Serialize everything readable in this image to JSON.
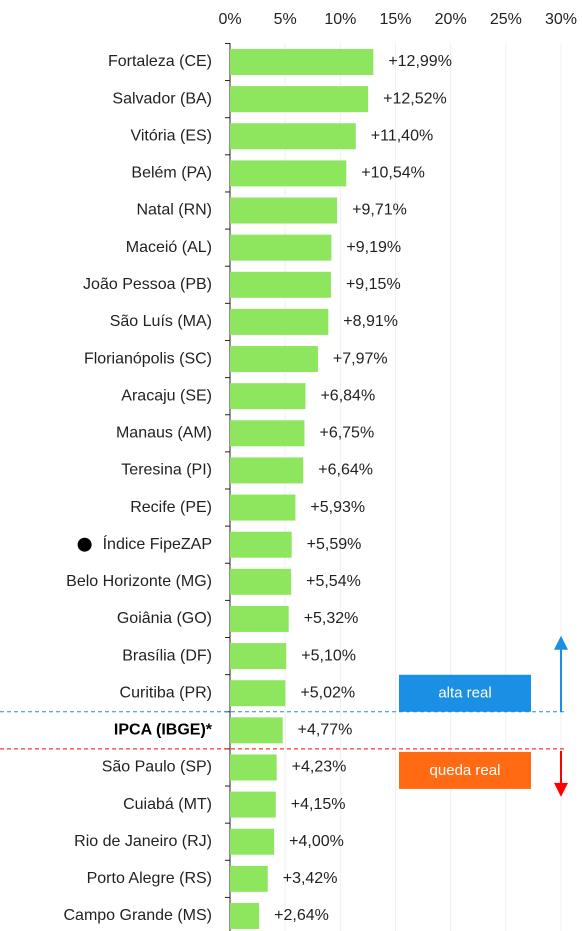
{
  "chart_data": {
    "type": "hbar",
    "categories": [
      "Fortaleza (CE)",
      "Salvador (BA)",
      "Vitória (ES)",
      "Belém (PA)",
      "Natal (RN)",
      "Maceió (AL)",
      "João Pessoa (PB)",
      "São Luís (MA)",
      "Florianópolis (SC)",
      "Aracaju (SE)",
      "Manaus (AM)",
      "Teresina (PI)",
      "Recife (PE)",
      "Índice FipeZAP",
      "Belo Horizonte (MG)",
      "Goiânia (GO)",
      "Brasília (DF)",
      "Curitiba (PR)",
      "IPCA (IBGE)*",
      "São Paulo (SP)",
      "Cuiabá (MT)",
      "Rio de Janeiro (RJ)",
      "Porto Alegre (RS)",
      "Campo Grande (MS)"
    ],
    "values": [
      12.99,
      12.52,
      11.4,
      10.54,
      9.71,
      9.19,
      9.15,
      8.91,
      7.97,
      6.84,
      6.75,
      6.64,
      5.93,
      5.59,
      5.54,
      5.32,
      5.1,
      5.02,
      4.77,
      4.23,
      4.15,
      4.0,
      3.42,
      2.64
    ],
    "value_labels": [
      "+12,99%",
      "+12,52%",
      "+11,40%",
      "+10,54%",
      "+9,71%",
      "+9,19%",
      "+9,15%",
      "+8,91%",
      "+7,97%",
      "+6,84%",
      "+6,75%",
      "+6,64%",
      "+5,93%",
      "+5,59%",
      "+5,54%",
      "+5,32%",
      "+5,10%",
      "+5,02%",
      "+4,77%",
      "+4,23%",
      "+4,15%",
      "+4,00%",
      "+3,42%",
      "+2,64%"
    ],
    "color": "#8ee65f",
    "xlim": [
      0,
      30
    ],
    "xticks": [
      {
        "value": 0,
        "label": "0%"
      },
      {
        "value": 5,
        "label": "5%"
      },
      {
        "value": 10,
        "label": "10%"
      },
      {
        "value": 15,
        "label": "15%"
      },
      {
        "value": 20,
        "label": "20%"
      },
      {
        "value": 25,
        "label": "25%"
      },
      {
        "value": 30,
        "label": "30%"
      }
    ],
    "grid": true,
    "reference_index": 18,
    "marker_index": 13,
    "annotations": [
      {
        "text": "alta real",
        "color": "#1a8fe3"
      },
      {
        "text": "queda real",
        "color": "#ff6a13"
      }
    ]
  }
}
